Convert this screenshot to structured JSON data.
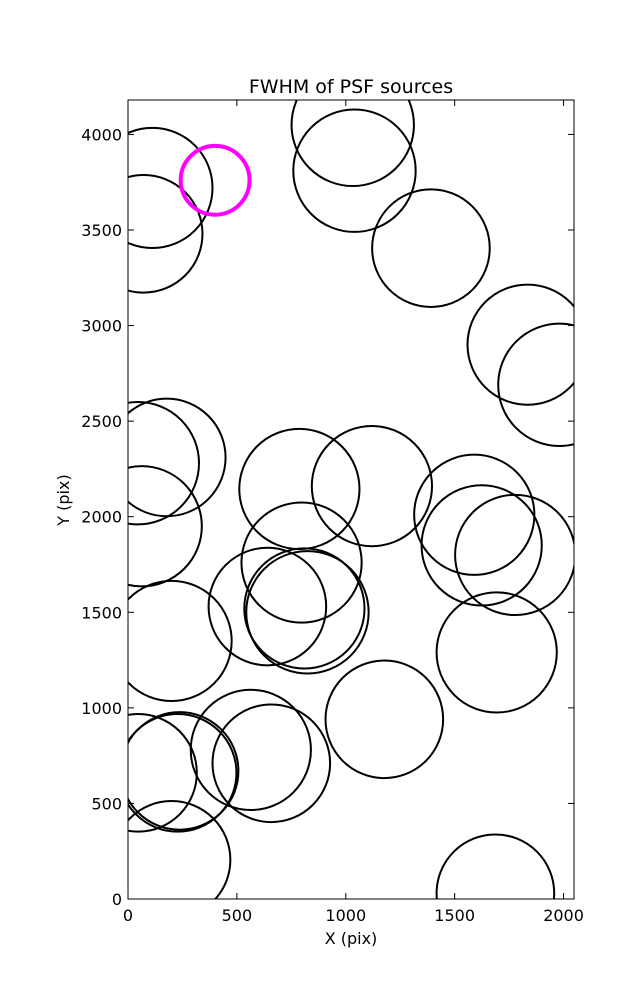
{
  "chart_data": {
    "type": "scatter",
    "title": "FWHM of PSF sources",
    "xlabel": "X (pix)",
    "ylabel": "Y (pix)",
    "xlim": [
      0,
      2048
    ],
    "ylim": [
      0,
      4180
    ],
    "xticks": [
      0,
      500,
      1000,
      1500,
      2000
    ],
    "yticks": [
      0,
      500,
      1000,
      1500,
      2000,
      2500,
      3000,
      3500,
      4000
    ],
    "grid": false,
    "legend": "none",
    "marker": "circle",
    "default_color": "#000000",
    "highlight_color": "#ff00ff",
    "points": [
      {
        "x": 112,
        "y": 3720,
        "r": 276
      },
      {
        "x": 72,
        "y": 3480,
        "r": 270
      },
      {
        "x": 400,
        "y": 3760,
        "r": 158,
        "highlight": true
      },
      {
        "x": 1032,
        "y": 4050,
        "r": 281
      },
      {
        "x": 1040,
        "y": 3810,
        "r": 281
      },
      {
        "x": 1391,
        "y": 3405,
        "r": 270
      },
      {
        "x": 1835,
        "y": 2900,
        "r": 276
      },
      {
        "x": 1981,
        "y": 2690,
        "r": 281
      },
      {
        "x": 178,
        "y": 2310,
        "r": 270
      },
      {
        "x": 45,
        "y": 2280,
        "r": 281
      },
      {
        "x": 63,
        "y": 1950,
        "r": 276
      },
      {
        "x": 787,
        "y": 2145,
        "r": 276
      },
      {
        "x": 1120,
        "y": 2160,
        "r": 276
      },
      {
        "x": 1590,
        "y": 2010,
        "r": 276
      },
      {
        "x": 1624,
        "y": 1850,
        "r": 276
      },
      {
        "x": 1778,
        "y": 1800,
        "r": 276
      },
      {
        "x": 797,
        "y": 1760,
        "r": 276
      },
      {
        "x": 640,
        "y": 1530,
        "r": 270
      },
      {
        "x": 810,
        "y": 1520,
        "r": 276
      },
      {
        "x": 824,
        "y": 1500,
        "r": 281
      },
      {
        "x": 200,
        "y": 1350,
        "r": 276
      },
      {
        "x": 1693,
        "y": 1290,
        "r": 276
      },
      {
        "x": 1177,
        "y": 940,
        "r": 270
      },
      {
        "x": 564,
        "y": 780,
        "r": 276
      },
      {
        "x": 658,
        "y": 710,
        "r": 270
      },
      {
        "x": 237,
        "y": 670,
        "r": 270
      },
      {
        "x": 228,
        "y": 660,
        "r": 270
      },
      {
        "x": 46,
        "y": 660,
        "r": 270
      },
      {
        "x": 200,
        "y": 205,
        "r": 270
      },
      {
        "x": 1687,
        "y": 30,
        "r": 270
      }
    ]
  }
}
